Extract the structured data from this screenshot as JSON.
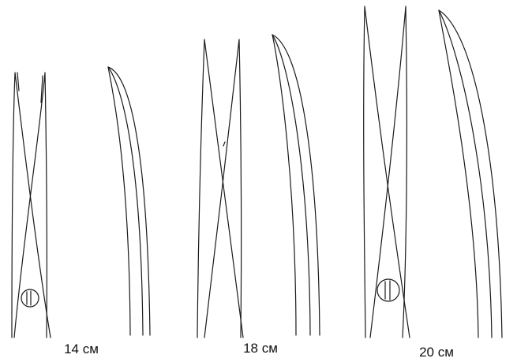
{
  "figure": {
    "background": "#ffffff",
    "stroke_color": "#1a1a1a",
    "items": [
      {
        "id": "scissors-14",
        "size_label": "14 см"
      },
      {
        "id": "scissors-18",
        "size_label": "18 см"
      },
      {
        "id": "scissors-20",
        "size_label": "20 см"
      }
    ]
  }
}
